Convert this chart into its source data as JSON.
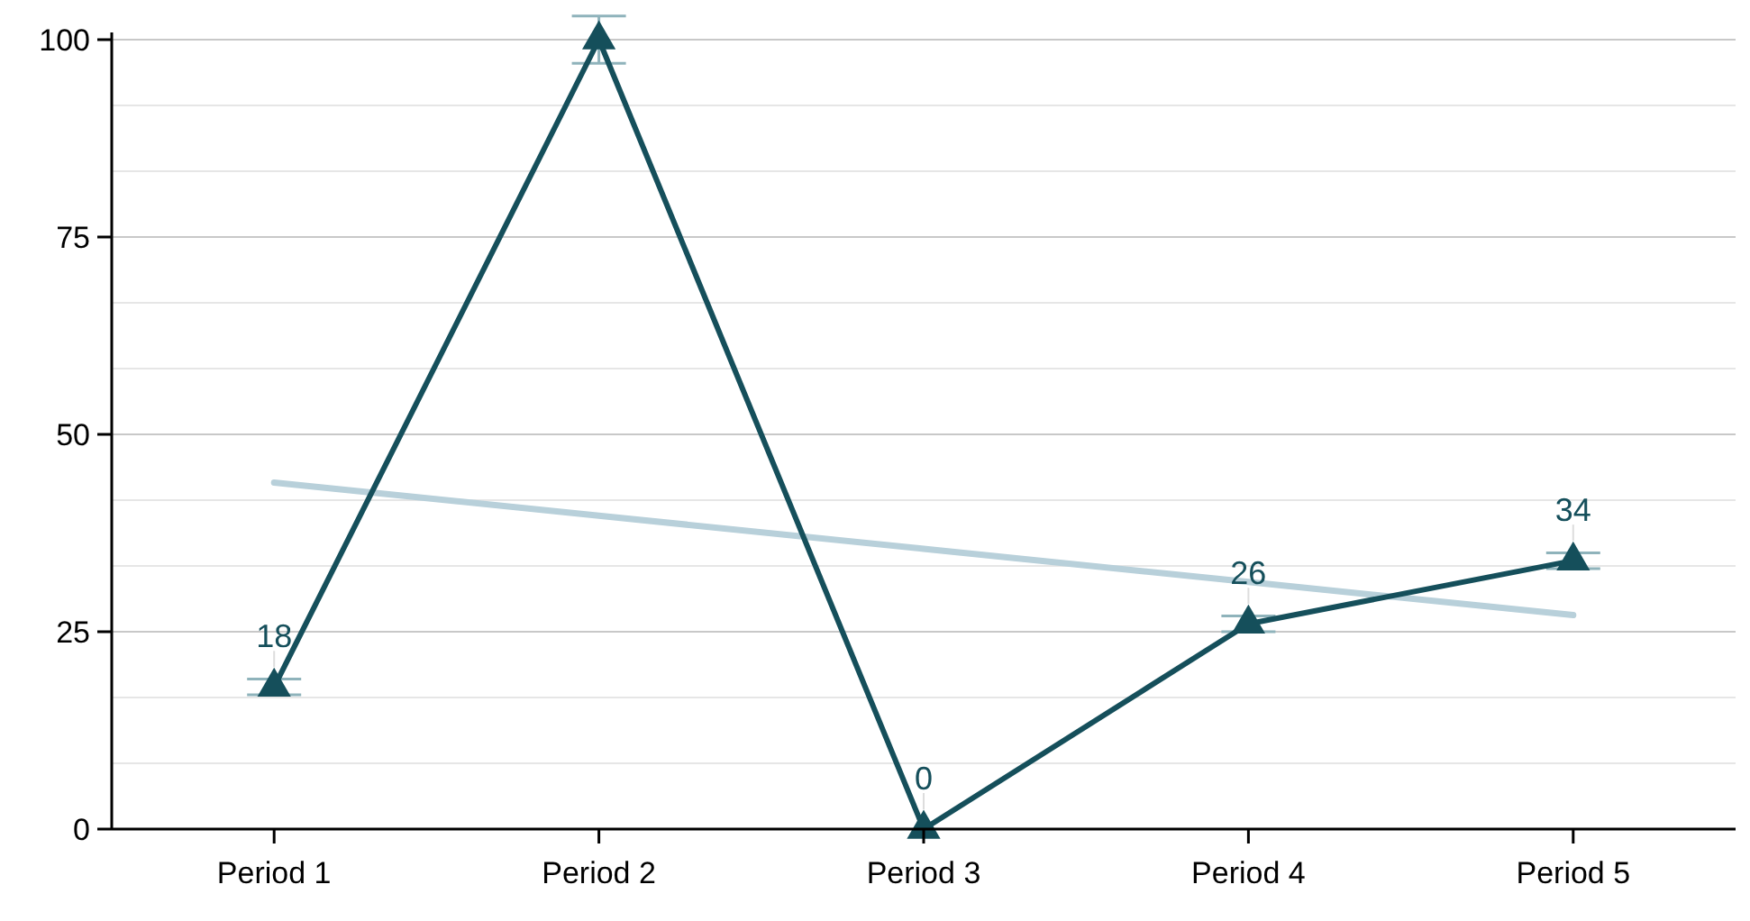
{
  "chart_data": {
    "type": "line",
    "categories": [
      "Period 1",
      "Period 2",
      "Period 3",
      "Period 4",
      "Period 5"
    ],
    "series": [
      {
        "color": "#154f5b",
        "values": [
          18,
          100,
          0,
          26,
          34
        ],
        "errors": [
          1,
          3,
          null,
          1,
          1
        ],
        "value_labels": [
          "18",
          null,
          "0",
          "26",
          "34"
        ],
        "marker": "triangle"
      },
      {
        "color": "#b8d0da",
        "values": [
          43.9,
          39.7,
          35.5,
          31.3,
          27.1
        ],
        "marker": "none"
      }
    ],
    "ylim": [
      0,
      100
    ],
    "yticks": [
      0,
      {
        "value": 8.33,
        "label": null
      },
      {
        "value": 16.67,
        "label": null
      },
      25,
      {
        "value": 33.33,
        "label": null
      },
      {
        "value": 41.67,
        "label": null
      },
      50,
      {
        "value": 58.33,
        "label": null
      },
      {
        "value": 66.67,
        "label": null
      },
      75,
      {
        "value": 83.33,
        "label": null
      },
      {
        "value": 91.67,
        "label": null
      },
      100
    ],
    "grid": "y"
  }
}
